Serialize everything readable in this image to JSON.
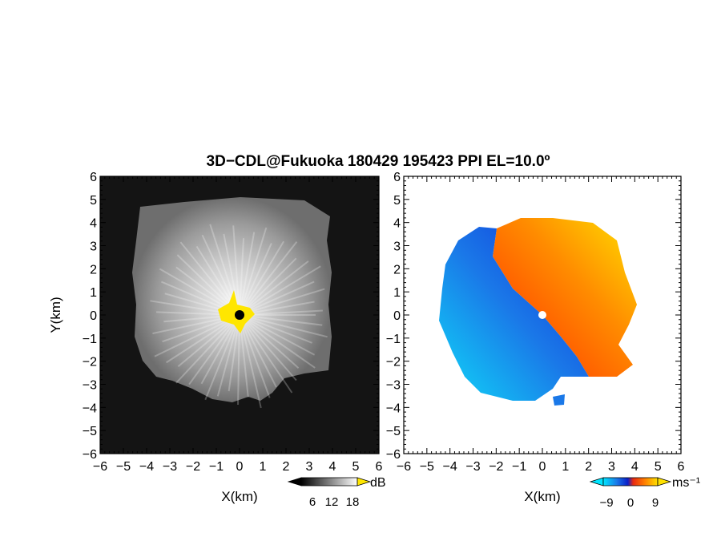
{
  "title": "3D−CDL@Fukuoka 180429 195423 PPI EL=10.0º",
  "left_panel": {
    "xlabel": "X(km)",
    "ylabel": "Y(km)",
    "colorbar": {
      "unit": "dB",
      "ticks": [
        "6",
        "12",
        "18"
      ]
    }
  },
  "right_panel": {
    "xlabel": "X(km)",
    "colorbar": {
      "unit": "ms⁻¹",
      "ticks": [
        "−9",
        "0",
        "9"
      ]
    }
  },
  "axis_ticks": [
    "−6",
    "−5",
    "−4",
    "−3",
    "−2",
    "−1",
    "0",
    "1",
    "2",
    "3",
    "4",
    "5",
    "6"
  ],
  "axis_range": [
    -6,
    6
  ],
  "colors": {
    "reflectivity_background": "#141414",
    "marker_left": "#000000",
    "marker_right": "#ffffff",
    "clutter": "#ffe600",
    "velocity_negative": "#1a78e8",
    "velocity_positive": "#ff5a00"
  }
}
